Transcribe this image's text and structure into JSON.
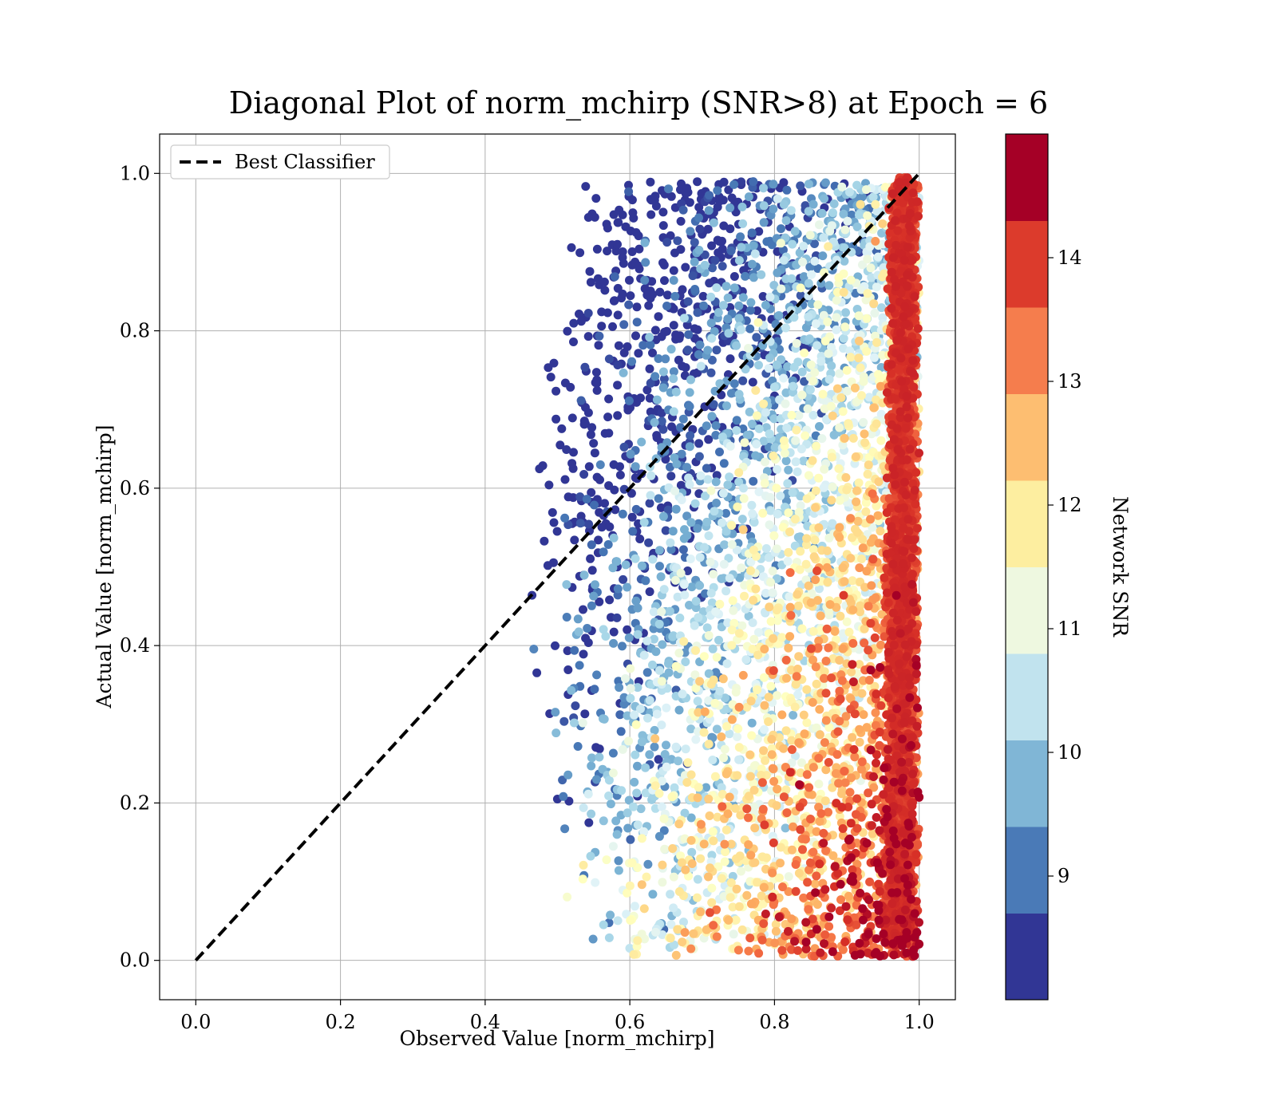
{
  "chart_data": {
    "type": "scatter",
    "title": "Diagonal Plot of norm_mchirp (SNR>8) at Epoch = 6",
    "xlabel": "Observed Value [norm_mchirp]",
    "ylabel": "Actual Value [norm_mchirp]",
    "xlim": [
      -0.05,
      1.05
    ],
    "ylim": [
      -0.05,
      1.05
    ],
    "x_ticks": [
      "0.0",
      "0.2",
      "0.4",
      "0.6",
      "0.8",
      "1.0"
    ],
    "y_ticks": [
      "0.0",
      "0.2",
      "0.4",
      "0.6",
      "0.8",
      "1.0"
    ],
    "grid": true,
    "legend": {
      "placement": "upper-left",
      "entries": [
        "Best Classifier"
      ]
    },
    "reference_line": {
      "name": "Best Classifier",
      "style": "dashed",
      "color": "#000000",
      "points": [
        [
          0,
          0
        ],
        [
          1,
          1
        ]
      ]
    },
    "scatter_distribution": {
      "x_range": [
        0.45,
        1.0
      ],
      "y_range": [
        0.0,
        1.0
      ],
      "dense_column_x_range": [
        0.97,
        1.0
      ],
      "dense_column_color_snr": 14.5,
      "trend": "low SNR points lie at lower observed values and higher actual values; high SNR points concentrate near observed value 1.0 and low actual values"
    },
    "colorbar": {
      "label": "Network SNR",
      "range": [
        8,
        15
      ],
      "ticks": [
        "9",
        "10",
        "11",
        "12",
        "13",
        "14"
      ],
      "colormap": "RdYlBu_r",
      "levels": [
        "#313695",
        "#4575b4",
        "#74add1",
        "#abd9e9",
        "#e0f3f8",
        "#ffffbf",
        "#fee090",
        "#fdae61",
        "#f46d43",
        "#d73027",
        "#a50026"
      ],
      "band_colors": [
        "#313695",
        "#4a7ab7",
        "#80b6d6",
        "#c1e3ee",
        "#eef8e0",
        "#fdeea0",
        "#fdbe71",
        "#f57d4d",
        "#dc3b2c",
        "#a50026"
      ]
    }
  }
}
